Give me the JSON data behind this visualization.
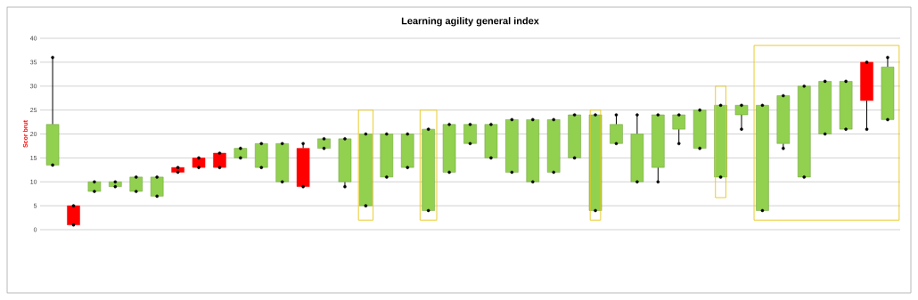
{
  "chart_data": {
    "type": "candlestick",
    "title": "Learning agility general index",
    "ylabel": "Scor brut",
    "categories": [
      null,
      null,
      null,
      null,
      null,
      null,
      null,
      null,
      null,
      null,
      null,
      null,
      null,
      null,
      null,
      null,
      null,
      null,
      null,
      null,
      null,
      null,
      null,
      null,
      null,
      null,
      null,
      null,
      null,
      null,
      null,
      null,
      null,
      null,
      null,
      null,
      null,
      null,
      null,
      null,
      null
    ],
    "ohlc": [
      [
        13.5,
        36,
        13.5,
        22
      ],
      [
        5,
        5,
        1,
        1
      ],
      [
        8,
        10,
        8,
        10
      ],
      [
        9,
        10,
        9,
        10
      ],
      [
        8,
        11,
        8,
        11
      ],
      [
        7,
        11,
        7,
        11
      ],
      [
        13,
        13,
        12,
        12
      ],
      [
        15,
        15,
        13,
        13
      ],
      [
        16,
        16,
        13,
        13
      ],
      [
        15,
        17,
        15,
        17
      ],
      [
        13,
        18,
        13,
        18
      ],
      [
        10,
        18,
        10,
        18
      ],
      [
        17,
        18,
        9,
        9
      ],
      [
        17,
        19,
        17,
        19
      ],
      [
        10,
        19,
        9,
        19
      ],
      [
        5,
        20,
        5,
        20
      ],
      [
        11,
        20,
        11,
        20
      ],
      [
        13,
        20,
        13,
        20
      ],
      [
        4,
        21,
        4,
        21
      ],
      [
        12,
        22,
        12,
        22
      ],
      [
        18,
        22,
        18,
        22
      ],
      [
        15,
        22,
        15,
        22
      ],
      [
        12,
        23,
        12,
        23
      ],
      [
        10,
        23,
        10,
        23
      ],
      [
        12,
        23,
        12,
        23
      ],
      [
        15,
        24,
        15,
        24
      ],
      [
        4,
        24,
        4,
        24
      ],
      [
        18,
        24,
        18,
        22
      ],
      [
        10,
        24,
        10,
        20
      ],
      [
        13,
        24,
        10,
        24
      ],
      [
        21,
        24,
        18,
        24
      ],
      [
        17,
        25,
        17,
        25
      ],
      [
        11,
        26,
        11,
        26
      ],
      [
        24,
        26,
        21,
        26
      ],
      [
        4,
        26,
        4,
        26
      ],
      [
        18,
        28,
        17,
        28
      ],
      [
        11,
        30,
        11,
        30
      ],
      [
        20,
        31,
        20,
        31
      ],
      [
        21,
        31,
        21,
        31
      ],
      [
        35,
        35,
        21,
        27
      ],
      [
        23,
        36,
        23,
        34
      ]
    ],
    "colors": [
      "#92d050",
      "#ff0000",
      "#92d050",
      "#92d050",
      "#92d050",
      "#92d050",
      "#ff0000",
      "#ff0000",
      "#ff0000",
      "#92d050",
      "#92d050",
      "#92d050",
      "#ff0000",
      "#92d050",
      "#92d050",
      "#92d050",
      "#92d050",
      "#92d050",
      "#92d050",
      "#92d050",
      "#92d050",
      "#92d050",
      "#92d050",
      "#92d050",
      "#92d050",
      "#92d050",
      "#92d050",
      "#92d050",
      "#92d050",
      "#92d050",
      "#92d050",
      "#92d050",
      "#92d050",
      "#92d050",
      "#92d050",
      "#92d050",
      "#92d050",
      "#92d050",
      "#92d050",
      "#ff0000",
      "#92d050"
    ],
    "series": [
      {
        "type": "scatter",
        "color": "#000000",
        "values": [
          36,
          5,
          10,
          10,
          11,
          11,
          13,
          15,
          16,
          17,
          18,
          18,
          18,
          19,
          19,
          20,
          20,
          20,
          21,
          22,
          22,
          22,
          23,
          23,
          23,
          24,
          24,
          24,
          24,
          24,
          24,
          25,
          26,
          26,
          26,
          28,
          30,
          31,
          31,
          35,
          36
        ]
      },
      {
        "type": "scatter",
        "color": "#000000",
        "values": [
          13.5,
          1,
          8,
          9,
          8,
          7,
          12,
          13,
          13,
          15,
          13,
          10,
          9,
          17,
          9,
          5,
          11,
          13,
          4,
          12,
          18,
          15,
          12,
          10,
          12,
          15,
          4,
          18,
          10,
          10,
          18,
          17,
          11,
          21,
          4,
          17,
          11,
          20,
          21,
          21,
          23
        ]
      }
    ],
    "ylim": [
      0,
      40
    ],
    "yticks": [
      0,
      5,
      10,
      15,
      20,
      25,
      30,
      35,
      40
    ],
    "grid": "y",
    "marker": "circle",
    "tick_labels": "y"
  }
}
